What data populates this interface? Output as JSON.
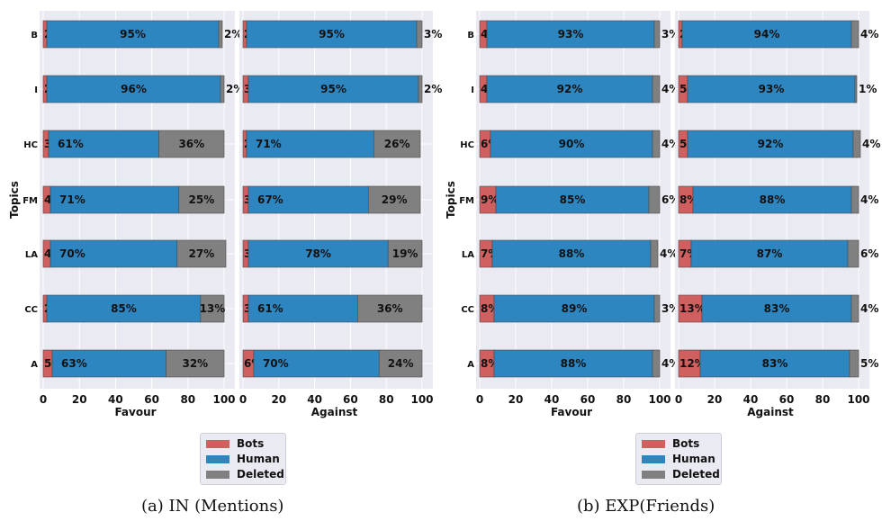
{
  "colors": {
    "bots": "#d05f5f",
    "human": "#2e86c1",
    "deleted": "#808080",
    "panel_bg": "#eaeaf2",
    "grid": "#ffffff"
  },
  "legend": {
    "bots": "Bots",
    "human": "Human",
    "deleted": "Deleted"
  },
  "captions": {
    "a": "(a) IN (Mentions)",
    "b": "(b) EXP(Friends)"
  },
  "chart_data": [
    {
      "type": "bar",
      "orientation": "horizontal",
      "stacked": true,
      "figure": "a",
      "xlabel": "Favour",
      "ylabel": "Topics",
      "xlim": [
        0,
        100
      ],
      "xticks": [
        "0",
        "20",
        "40",
        "60",
        "80",
        "100"
      ],
      "categories": [
        "B",
        "I",
        "HC",
        "FM",
        "LA",
        "CC",
        "A"
      ],
      "series": [
        {
          "name": "Bots",
          "values": [
            2,
            2,
            3,
            4,
            4,
            2,
            5
          ]
        },
        {
          "name": "Human",
          "values": [
            95,
            96,
            61,
            71,
            70,
            85,
            63
          ]
        },
        {
          "name": "Deleted",
          "values": [
            2,
            2,
            36,
            25,
            27,
            13,
            32
          ]
        }
      ]
    },
    {
      "type": "bar",
      "orientation": "horizontal",
      "stacked": true,
      "figure": "a",
      "xlabel": "Against",
      "xlim": [
        0,
        100
      ],
      "xticks": [
        "0",
        "20",
        "40",
        "60",
        "80",
        "100"
      ],
      "categories": [
        "B",
        "I",
        "HC",
        "FM",
        "LA",
        "CC",
        "A"
      ],
      "series": [
        {
          "name": "Bots",
          "values": [
            2,
            3,
            2,
            3,
            3,
            3,
            6
          ]
        },
        {
          "name": "Human",
          "values": [
            95,
            95,
            71,
            67,
            78,
            61,
            70
          ]
        },
        {
          "name": "Deleted",
          "values": [
            3,
            2,
            26,
            29,
            19,
            36,
            24
          ]
        }
      ]
    },
    {
      "type": "bar",
      "orientation": "horizontal",
      "stacked": true,
      "figure": "b",
      "xlabel": "Favour",
      "ylabel": "Topics",
      "xlim": [
        0,
        100
      ],
      "xticks": [
        "0",
        "20",
        "40",
        "60",
        "80",
        "100"
      ],
      "categories": [
        "B",
        "I",
        "HC",
        "FM",
        "LA",
        "CC",
        "A"
      ],
      "series": [
        {
          "name": "Bots",
          "values": [
            4,
            4,
            6,
            9,
            7,
            8,
            8
          ]
        },
        {
          "name": "Human",
          "values": [
            93,
            92,
            90,
            85,
            88,
            89,
            88
          ]
        },
        {
          "name": "Deleted",
          "values": [
            3,
            4,
            4,
            6,
            4,
            3,
            4
          ]
        }
      ]
    },
    {
      "type": "bar",
      "orientation": "horizontal",
      "stacked": true,
      "figure": "b",
      "xlabel": "Against",
      "xlim": [
        0,
        100
      ],
      "xticks": [
        "0",
        "20",
        "40",
        "60",
        "80",
        "100"
      ],
      "categories": [
        "B",
        "I",
        "HC",
        "FM",
        "LA",
        "CC",
        "A"
      ],
      "series": [
        {
          "name": "Bots",
          "values": [
            2,
            5,
            5,
            8,
            7,
            13,
            12
          ]
        },
        {
          "name": "Human",
          "values": [
            94,
            93,
            92,
            88,
            87,
            83,
            83
          ]
        },
        {
          "name": "Deleted",
          "values": [
            4,
            1,
            4,
            4,
            6,
            4,
            5
          ]
        }
      ]
    }
  ]
}
